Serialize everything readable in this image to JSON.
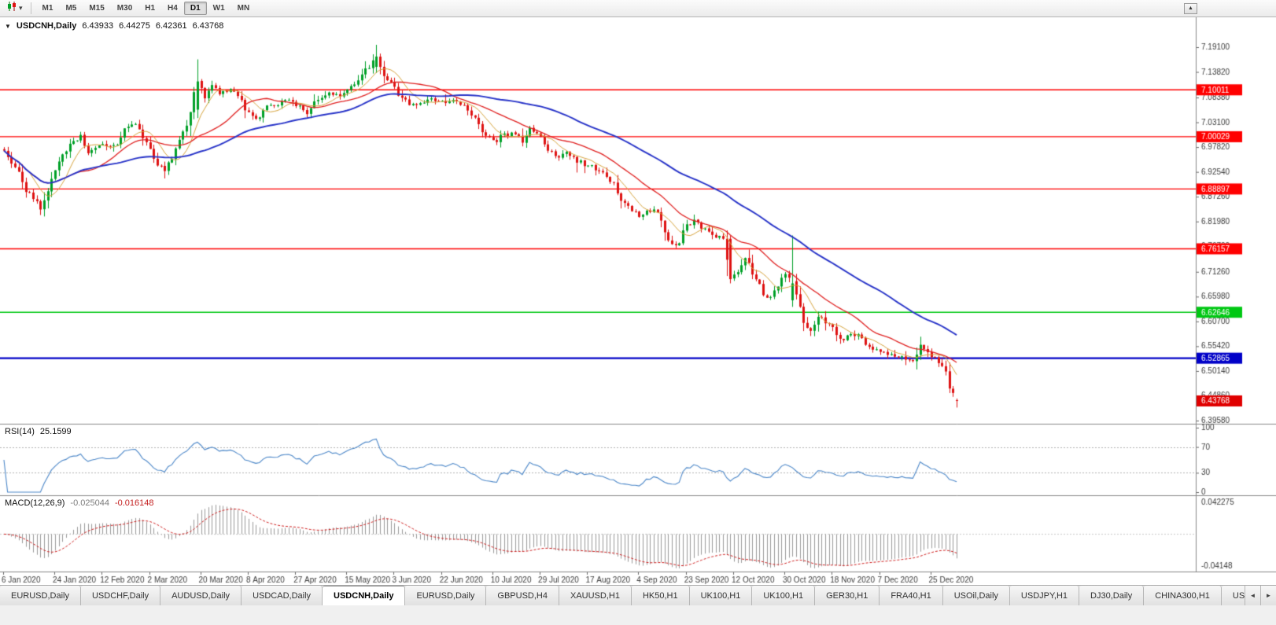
{
  "toolbar": {
    "timeframes": [
      "M1",
      "M5",
      "M15",
      "M30",
      "H1",
      "H4",
      "D1",
      "W1",
      "MN"
    ],
    "active_timeframe": "D1",
    "scroll_up_glyph": "▲",
    "chart_type_caret": "▾"
  },
  "chart": {
    "symbol_period": "USDCNH,Daily",
    "open": "6.43933",
    "high": "6.44275",
    "low": "6.42361",
    "close": "6.43768",
    "collapse_glyph": "▼"
  },
  "indicators": {
    "rsi": {
      "label": "RSI(14)",
      "value": "25.1599"
    },
    "macd": {
      "label": "MACD(12,26,9)",
      "value_main": "-0.025044",
      "value_signal": "-0.016148"
    }
  },
  "chart_data": {
    "type": "candlestick",
    "symbol": "USDCNH",
    "timeframe": "Daily",
    "colors": {
      "bull": "#00A028",
      "bear": "#DE1212",
      "background": "#FFFFFF"
    },
    "y_axis": {
      "top_price": 7.2546,
      "bottom_price": 6.3891,
      "ticks": [
        7.191,
        7.1382,
        7.0838,
        7.031,
        6.9782,
        6.9254,
        6.8726,
        6.8198,
        6.767,
        6.7126,
        6.6598,
        6.607,
        6.5542,
        6.5014,
        6.4486,
        6.3958
      ]
    },
    "price_lines": [
      {
        "price": 7.10011,
        "label": "7.10011",
        "color": "#FF0000",
        "width": 1.4
      },
      {
        "price": 7.00029,
        "label": "7.00029",
        "color": "#FF0000",
        "width": 1.4
      },
      {
        "price": 6.88897,
        "label": "6.88897",
        "color": "#FF0000",
        "width": 1.4
      },
      {
        "price": 6.76157,
        "label": "6.76157",
        "color": "#FF0000",
        "width": 1.4
      },
      {
        "price": 6.62646,
        "label": "6.62646",
        "color": "#00C813",
        "width": 1.6
      },
      {
        "price": 6.52865,
        "label": "6.52865",
        "color": "#0000C8",
        "width": 2.2
      }
    ],
    "current_price": {
      "value": 6.43768,
      "label": "6.43768",
      "color": "#E00000"
    },
    "x_axis": [
      {
        "i": 0,
        "label": "6 Jan 2020"
      },
      {
        "i": 14,
        "label": "24 Jan 2020"
      },
      {
        "i": 27,
        "label": "12 Feb 2020"
      },
      {
        "i": 40,
        "label": "2 Mar 2020"
      },
      {
        "i": 54,
        "label": "20 Mar 2020"
      },
      {
        "i": 67,
        "label": "8 Apr 2020"
      },
      {
        "i": 80,
        "label": "27 Apr 2020"
      },
      {
        "i": 94,
        "label": "15 May 2020"
      },
      {
        "i": 107,
        "label": "3 Jun 2020"
      },
      {
        "i": 120,
        "label": "22 Jun 2020"
      },
      {
        "i": 134,
        "label": "10 Jul 2020"
      },
      {
        "i": 147,
        "label": "29 Jul 2020"
      },
      {
        "i": 160,
        "label": "17 Aug 2020"
      },
      {
        "i": 174,
        "label": "4 Sep 2020"
      },
      {
        "i": 187,
        "label": "23 Sep 2020"
      },
      {
        "i": 200,
        "label": "12 Oct 2020"
      },
      {
        "i": 214,
        "label": "30 Oct 2020"
      },
      {
        "i": 227,
        "label": "18 Nov 2020"
      },
      {
        "i": 240,
        "label": "7 Dec 2020"
      },
      {
        "i": 254,
        "label": "25 Dec 2020"
      }
    ],
    "candles": {
      "count": 262,
      "close_path": [
        [
          0,
          6.97
        ],
        [
          2,
          6.944
        ],
        [
          4,
          6.93
        ],
        [
          6,
          6.886
        ],
        [
          8,
          6.872
        ],
        [
          10,
          6.846
        ],
        [
          12,
          6.882
        ],
        [
          14,
          6.932
        ],
        [
          16,
          6.964
        ],
        [
          19,
          6.99
        ],
        [
          21,
          7.001
        ],
        [
          23,
          6.968
        ],
        [
          26,
          6.984
        ],
        [
          29,
          6.978
        ],
        [
          31,
          6.986
        ],
        [
          34,
          7.026
        ],
        [
          36,
          7.03
        ],
        [
          39,
          6.99
        ],
        [
          42,
          6.938
        ],
        [
          44,
          6.93
        ],
        [
          46,
          6.954
        ],
        [
          48,
          6.996
        ],
        [
          50,
          7.028
        ],
        [
          53,
          7.118
        ],
        [
          55,
          7.085
        ],
        [
          57,
          7.108
        ],
        [
          59,
          7.092
        ],
        [
          62,
          7.1
        ],
        [
          64,
          7.088
        ],
        [
          67,
          7.052
        ],
        [
          69,
          7.038
        ],
        [
          72,
          7.066
        ],
        [
          75,
          7.07
        ],
        [
          78,
          7.08
        ],
        [
          81,
          7.062
        ],
        [
          83,
          7.052
        ],
        [
          86,
          7.08
        ],
        [
          89,
          7.094
        ],
        [
          92,
          7.088
        ],
        [
          94,
          7.104
        ],
        [
          97,
          7.12
        ],
        [
          99,
          7.144
        ],
        [
          102,
          7.17
        ],
        [
          104,
          7.132
        ],
        [
          106,
          7.118
        ],
        [
          109,
          7.08
        ],
        [
          112,
          7.066
        ],
        [
          114,
          7.072
        ],
        [
          117,
          7.078
        ],
        [
          120,
          7.072
        ],
        [
          123,
          7.076
        ],
        [
          126,
          7.064
        ],
        [
          129,
          7.04
        ],
        [
          131,
          7.01
        ],
        [
          134,
          6.99
        ],
        [
          137,
          7.003
        ],
        [
          140,
          7.006
        ],
        [
          142,
          6.99
        ],
        [
          144,
          7.018
        ],
        [
          147,
          7.0
        ],
        [
          149,
          6.974
        ],
        [
          152,
          6.958
        ],
        [
          154,
          6.968
        ],
        [
          157,
          6.948
        ],
        [
          160,
          6.94
        ],
        [
          163,
          6.924
        ],
        [
          165,
          6.916
        ],
        [
          167,
          6.898
        ],
        [
          169,
          6.862
        ],
        [
          172,
          6.846
        ],
        [
          174,
          6.834
        ],
        [
          177,
          6.844
        ],
        [
          179,
          6.838
        ],
        [
          182,
          6.78
        ],
        [
          184,
          6.766
        ],
        [
          187,
          6.81
        ],
        [
          189,
          6.822
        ],
        [
          192,
          6.804
        ],
        [
          195,
          6.788
        ],
        [
          197,
          6.782
        ],
        [
          199,
          6.696
        ],
        [
          201,
          6.712
        ],
        [
          203,
          6.744
        ],
        [
          206,
          6.694
        ],
        [
          209,
          6.656
        ],
        [
          212,
          6.682
        ],
        [
          214,
          6.712
        ],
        [
          216,
          6.688
        ],
        [
          218,
          6.64
        ],
        [
          219,
          6.606
        ],
        [
          221,
          6.586
        ],
        [
          223,
          6.614
        ],
        [
          226,
          6.604
        ],
        [
          229,
          6.566
        ],
        [
          231,
          6.576
        ],
        [
          234,
          6.578
        ],
        [
          236,
          6.56
        ],
        [
          239,
          6.546
        ],
        [
          242,
          6.538
        ],
        [
          245,
          6.534
        ],
        [
          247,
          6.528
        ],
        [
          249,
          6.524
        ],
        [
          251,
          6.554
        ],
        [
          253,
          6.54
        ],
        [
          255,
          6.528
        ],
        [
          257,
          6.512
        ],
        [
          258,
          6.5
        ],
        [
          259,
          6.464
        ],
        [
          260,
          6.452
        ],
        [
          261,
          6.438
        ]
      ],
      "overrides": [
        {
          "i": 53,
          "o": 7.058,
          "h": 7.165,
          "l": 7.04,
          "c": 7.118
        },
        {
          "i": 102,
          "o": 7.149,
          "h": 7.196,
          "l": 7.136,
          "c": 7.171
        },
        {
          "i": 199,
          "o": 6.783,
          "h": 6.789,
          "l": 6.688,
          "c": 6.697
        },
        {
          "i": 216,
          "o": 6.652,
          "h": 6.79,
          "l": 6.638,
          "c": 6.688
        },
        {
          "i": 261,
          "o": 6.43933,
          "h": 6.44275,
          "l": 6.42361,
          "c": 6.43768
        }
      ]
    },
    "moving_averages": [
      {
        "period": 8,
        "color": "#D7A43C",
        "width": 1
      },
      {
        "period": 21,
        "color": "#E02020",
        "width": 1.3
      },
      {
        "period": 55,
        "color": "#2632C8",
        "width": 1.9
      }
    ],
    "rsi": {
      "period": 14,
      "levels": [
        100,
        70,
        30,
        0
      ],
      "line_color": "#4A86C8"
    },
    "macd": {
      "fast": 12,
      "slow": 26,
      "signal": 9,
      "axis_max": "0.042275",
      "axis_min": "-0.04148",
      "hist_color": "#9A9A9A",
      "signal_color": "#D02020"
    }
  },
  "tabs": {
    "items": [
      "EURUSD,Daily",
      "USDCHF,Daily",
      "AUDUSD,Daily",
      "USDCAD,Daily",
      "USDCNH,Daily",
      "EURUSD,Daily",
      "GBPUSD,H4",
      "XAUUSD,H1",
      "HK50,H1",
      "UK100,H1",
      "UK100,H1",
      "GER30,H1",
      "FRA40,H1",
      "USOil,Daily",
      "USDJPY,H1",
      "DJ30,Daily",
      "CHINA300,H1",
      "USOil,"
    ],
    "active_index": 4,
    "scroll_left_glyph": "◄",
    "scroll_right_glyph": "►"
  }
}
